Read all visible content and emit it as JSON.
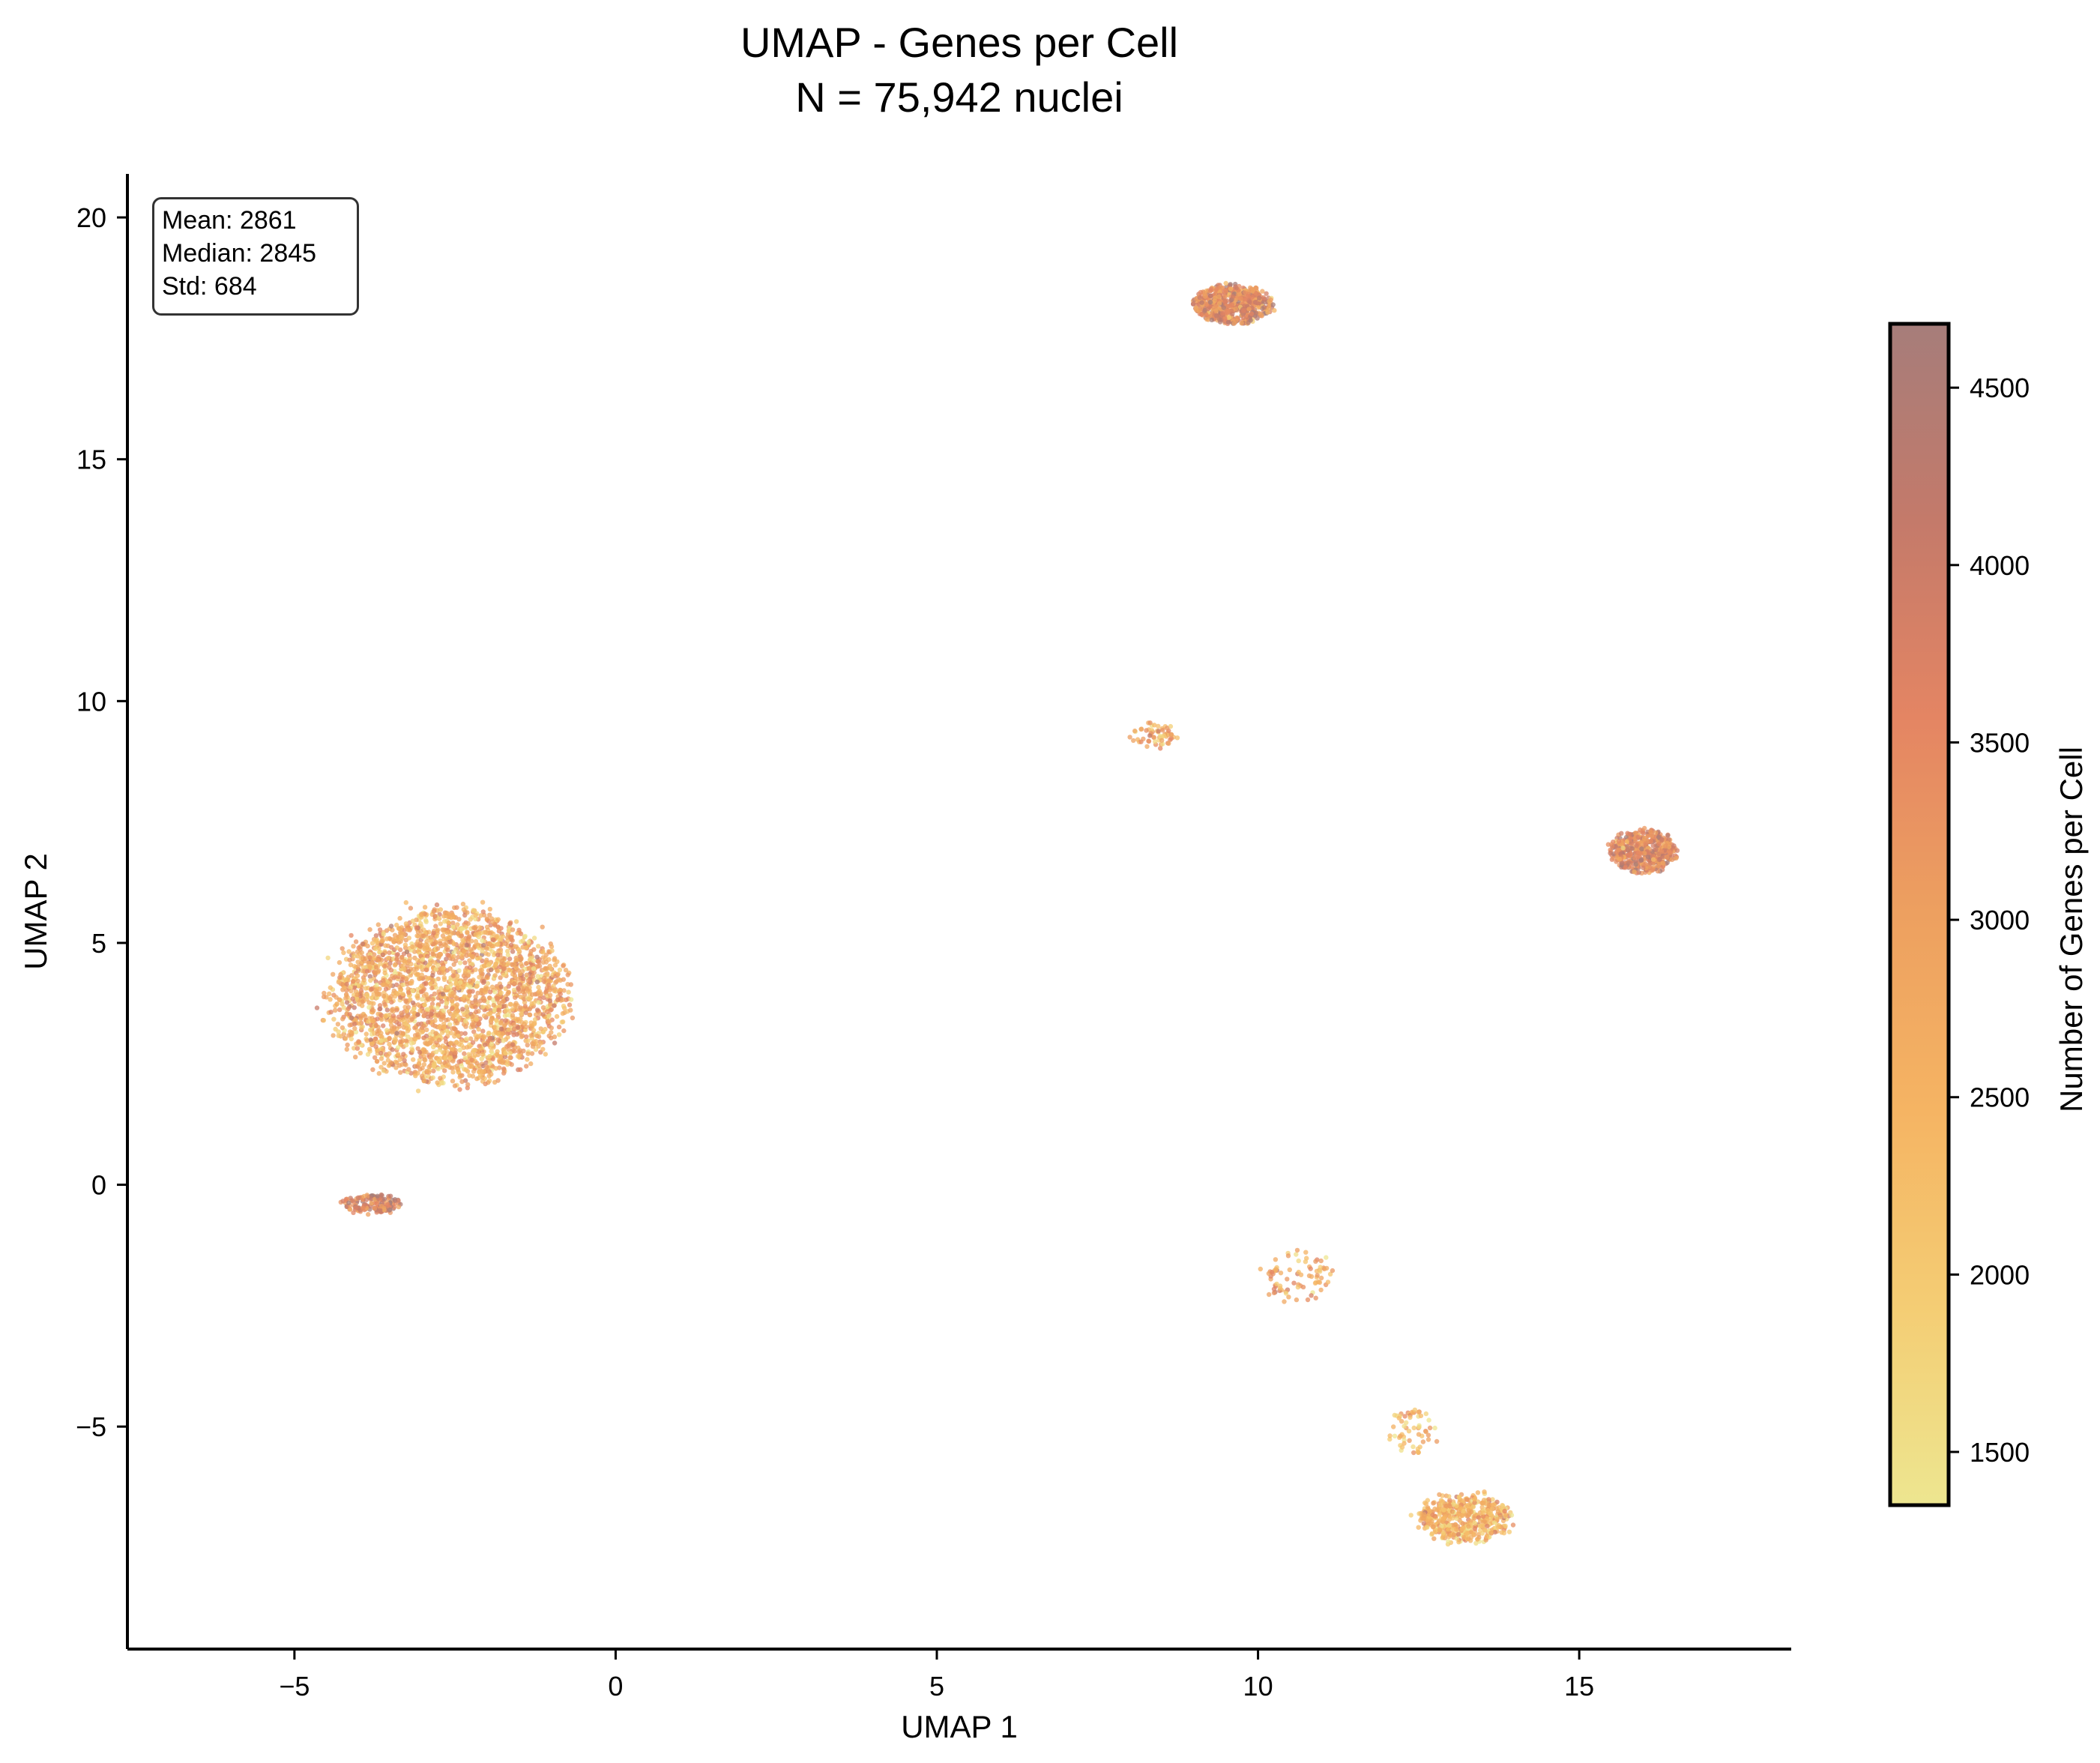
{
  "title_lines": [
    "UMAP - Genes per Cell",
    "N = 75,942 nuclei"
  ],
  "stats": {
    "mean": "Mean: 2861",
    "median": "Median: 2845",
    "std": "Std: 684"
  },
  "chart_data": {
    "type": "scatter",
    "title": "UMAP - Genes per Cell",
    "subtitle": "N = 75,942 nuclei",
    "xlabel": "UMAP 1",
    "ylabel": "UMAP 2",
    "xlim": [
      -7.6,
      18.3
    ],
    "ylim": [
      -9.6,
      20.9
    ],
    "xticks": [
      -5,
      0,
      5,
      10,
      15
    ],
    "xtick_labels": [
      "−5",
      "0",
      "5",
      "10",
      "15"
    ],
    "yticks": [
      -5,
      0,
      5,
      10,
      15,
      20
    ],
    "ytick_labels": [
      "−5",
      "0",
      "5",
      "10",
      "15",
      "20"
    ],
    "grid": false,
    "point_count_label": "N = 75,942 nuclei",
    "colorbar": {
      "label": "Number of Genes per Cell",
      "range": [
        1350,
        4680
      ],
      "ticks": [
        1500,
        2000,
        2500,
        3000,
        3500,
        4000,
        4500
      ],
      "colormap_stops": [
        "#ede690",
        "#f4cd74",
        "#f5b463",
        "#eda060",
        "#e48563",
        "#c47a6a",
        "#a67d7a"
      ]
    },
    "clusters": [
      {
        "center": [
          -2.6,
          3.9
        ],
        "spread": [
          3.6,
          3.5
        ],
        "mean_genes": 2750,
        "approx_points": 2600
      },
      {
        "center": [
          -3.8,
          -0.4
        ],
        "spread": [
          0.9,
          0.4
        ],
        "mean_genes": 3900,
        "approx_points": 150
      },
      {
        "center": [
          9.6,
          18.2
        ],
        "spread": [
          1.2,
          0.8
        ],
        "mean_genes": 3500,
        "approx_points": 600
      },
      {
        "center": [
          16.0,
          6.9
        ],
        "spread": [
          1.0,
          0.9
        ],
        "mean_genes": 3600,
        "approx_points": 500
      },
      {
        "center": [
          13.2,
          -6.9
        ],
        "spread": [
          1.4,
          1.0
        ],
        "mean_genes": 2500,
        "approx_points": 500
      },
      {
        "center": [
          8.4,
          9.3
        ],
        "spread": [
          0.7,
          0.5
        ],
        "mean_genes": 2700,
        "approx_points": 60
      },
      {
        "center": [
          10.6,
          -1.9
        ],
        "spread": [
          1.2,
          1.0
        ],
        "mean_genes": 2800,
        "approx_points": 80
      },
      {
        "center": [
          12.4,
          -5.1
        ],
        "spread": [
          0.8,
          1.0
        ],
        "mean_genes": 2300,
        "approx_points": 60
      }
    ]
  }
}
